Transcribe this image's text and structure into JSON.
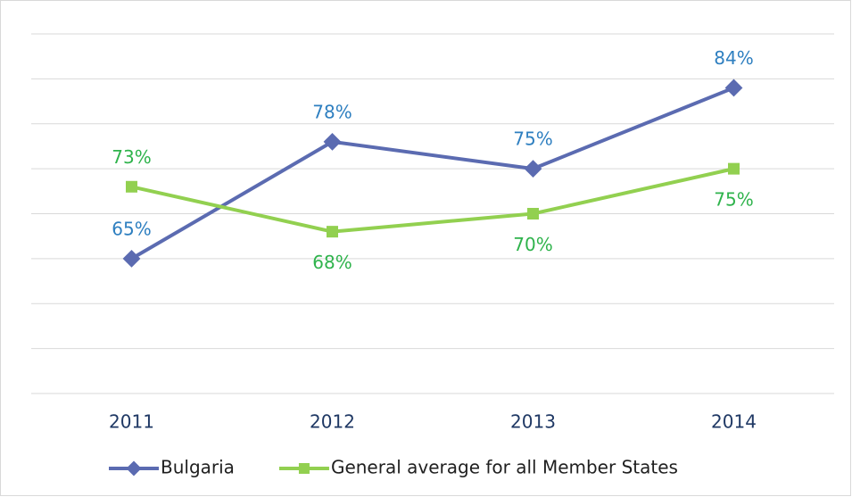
{
  "chart_data": {
    "type": "line",
    "categories": [
      "2011",
      "2012",
      "2013",
      "2014"
    ],
    "series": [
      {
        "name": "Bulgaria",
        "color": "#5b6bb1",
        "values": [
          65,
          78,
          75,
          84
        ],
        "value_labels": [
          "65%",
          "78%",
          "75%",
          "84%"
        ]
      },
      {
        "name": "General average for all Member States",
        "color": "#92d050",
        "values": [
          73,
          68,
          70,
          75
        ],
        "value_labels": [
          "73%",
          "68%",
          "70%",
          "75%"
        ]
      }
    ],
    "ylim": [
      50,
      90
    ],
    "yticks": [
      50,
      55,
      60,
      65,
      70,
      75,
      80,
      85,
      90
    ],
    "grid": true,
    "legend": "bottom"
  }
}
